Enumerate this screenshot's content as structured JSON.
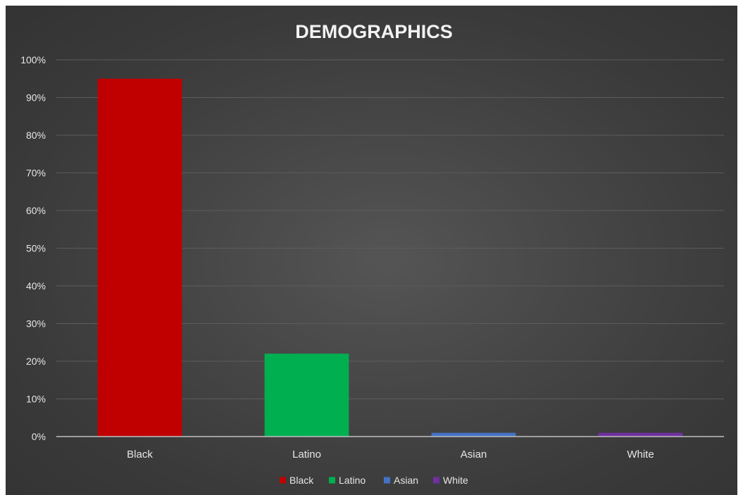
{
  "chart_data": {
    "type": "bar",
    "title": "DEMOGRAPHICS",
    "xlabel": "",
    "ylabel": "",
    "categories": [
      "Black",
      "Latino",
      "Asian",
      "White"
    ],
    "values": [
      0.95,
      0.22,
      0.01,
      0.01
    ],
    "colors": [
      "#c00000",
      "#00b050",
      "#4472c4",
      "#7030a0"
    ],
    "ylim": [
      0,
      1
    ],
    "yticks": [
      0,
      0.1,
      0.2,
      0.3,
      0.4,
      0.5,
      0.6,
      0.7,
      0.8,
      0.9,
      1.0
    ],
    "ytick_labels": [
      "0%",
      "10%",
      "20%",
      "30%",
      "40%",
      "50%",
      "60%",
      "70%",
      "80%",
      "90%",
      "100%"
    ],
    "grid": true,
    "legend": {
      "placement": "bottom",
      "entries": [
        "Black",
        "Latino",
        "Asian",
        "White"
      ]
    }
  }
}
